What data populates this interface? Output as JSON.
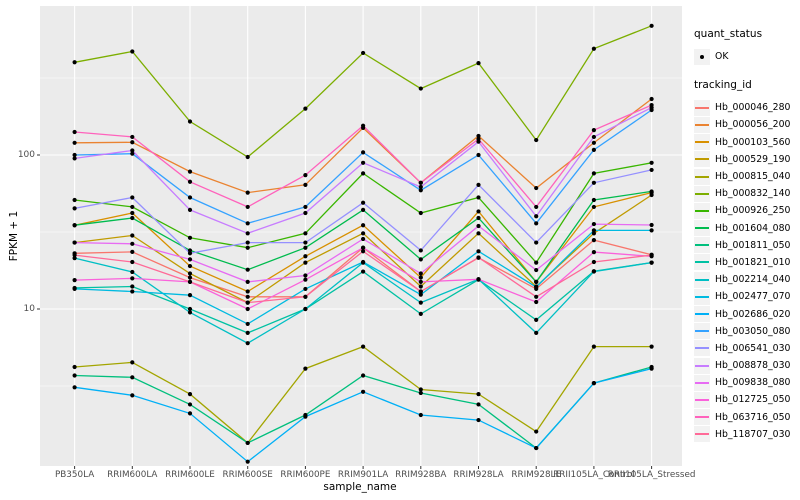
{
  "chart_data": {
    "type": "line",
    "xlabel": "sample_name",
    "ylabel": "FPKM + 1",
    "y_scale": "log10",
    "ylim": [
      0.95,
      930
    ],
    "y_major_ticks": [
      10,
      100
    ],
    "y_minor_ticks": [
      3.162,
      31.62,
      316.2
    ],
    "grid": "on",
    "legend_position": "right",
    "x_categories": [
      "PB350LA",
      "RRIM600LA",
      "RRIM600LE",
      "RRIM600SE",
      "RRIM600PE",
      "RRIM901LA",
      "RRIM928BA",
      "RRIM928LA",
      "RRIM928LE",
      "RRII105LA_Control",
      "RRII105LA_Stressed"
    ],
    "series": [
      {
        "name": "Hb_000046_280",
        "color": "#F8766D",
        "values": [
          23,
          23.5,
          16,
          12,
          12,
          25,
          13,
          21.5,
          13.5,
          28,
          22.5
        ]
      },
      {
        "name": "Hb_000056_200",
        "color": "#EA8331",
        "values": [
          120,
          121,
          78,
          57,
          64,
          150,
          66,
          133,
          61,
          120,
          231
        ]
      },
      {
        "name": "Hb_000103_560",
        "color": "#D89000",
        "values": [
          35,
          42,
          19,
          13,
          22,
          35,
          16,
          43,
          15,
          46,
          57
        ]
      },
      {
        "name": "Hb_000529_190",
        "color": "#C09B00",
        "values": [
          27,
          30,
          17,
          11,
          20,
          31,
          14,
          31,
          14,
          31,
          55
        ]
      },
      {
        "name": "Hb_000815_040",
        "color": "#A3A500",
        "values": [
          4.2,
          4.5,
          2.8,
          1.35,
          4.1,
          5.7,
          3.0,
          2.8,
          1.6,
          5.7,
          5.7
        ]
      },
      {
        "name": "Hb_000832_140",
        "color": "#7CAE00",
        "values": [
          400,
          470,
          165,
          97,
          200,
          460,
          270,
          395,
          125,
          490,
          690
        ]
      },
      {
        "name": "Hb_000926_250",
        "color": "#39B600",
        "values": [
          51,
          46,
          29,
          25,
          31,
          76,
          42,
          53,
          20,
          76,
          89
        ]
      },
      {
        "name": "Hb_001604_080",
        "color": "#00BB4E",
        "values": [
          35,
          39,
          24,
          18,
          25,
          44,
          21,
          39,
          15,
          51,
          58
        ]
      },
      {
        "name": "Hb_001811_050",
        "color": "#00BF7D",
        "values": [
          3.7,
          3.6,
          2.4,
          1.35,
          2.05,
          3.7,
          2.85,
          2.4,
          1.25,
          3.3,
          4.2
        ]
      },
      {
        "name": "Hb_001821_010",
        "color": "#00C1A3",
        "values": [
          13.7,
          14,
          10,
          7,
          10,
          17.5,
          9.3,
          15.5,
          8.5,
          17.6,
          20
        ]
      },
      {
        "name": "Hb_002214_040",
        "color": "#00BFC4",
        "values": [
          21.4,
          17.4,
          9.5,
          6,
          10,
          20,
          11,
          15.6,
          7,
          17.5,
          20
        ]
      },
      {
        "name": "Hb_002477_070",
        "color": "#00BAE0",
        "values": [
          13.5,
          13,
          12.3,
          8,
          13.5,
          20.2,
          12.4,
          23.7,
          13.9,
          32.4,
          32.4
        ]
      },
      {
        "name": "Hb_002686_020",
        "color": "#00B0F6",
        "values": [
          3.1,
          2.75,
          2.1,
          1.02,
          2.0,
          2.9,
          2.05,
          1.9,
          1.25,
          3.3,
          4.1
        ]
      },
      {
        "name": "Hb_003050_080",
        "color": "#35A2FF",
        "values": [
          100,
          102,
          53,
          36,
          46,
          104,
          59,
          100,
          36,
          108,
          196
        ]
      },
      {
        "name": "Hb_006541_030",
        "color": "#9590FF",
        "values": [
          45,
          53,
          23,
          27,
          27,
          49,
          24,
          64,
          27,
          66,
          80
        ]
      },
      {
        "name": "Hb_008878_030",
        "color": "#C77CFF",
        "values": [
          95,
          107,
          44,
          31,
          42,
          89,
          62,
          122,
          40,
          131,
          203
        ]
      },
      {
        "name": "Hb_009838_080",
        "color": "#E76BF3",
        "values": [
          27,
          26.5,
          21,
          15,
          16.5,
          28.5,
          17,
          34.6,
          17.9,
          35.6,
          35.1
        ]
      },
      {
        "name": "Hb_012725_050",
        "color": "#FA62DB",
        "values": [
          15.4,
          15.8,
          15,
          10,
          15.5,
          25,
          15,
          15.6,
          11.1,
          23.4,
          22
        ]
      },
      {
        "name": "Hb_063716_050",
        "color": "#FF62BC",
        "values": [
          141,
          131,
          67,
          46,
          74,
          155,
          66,
          127,
          46,
          145,
          211
        ]
      },
      {
        "name": "Hb_118707_030",
        "color": "#FF6A98",
        "values": [
          22.4,
          20.2,
          15,
          11,
          12,
          23.7,
          13,
          21.6,
          12,
          20.2,
          22.4
        ]
      }
    ]
  },
  "axes": {
    "y_title": "FPKM + 1",
    "x_title": "sample_name",
    "y_tick_labels": [
      "100",
      "10"
    ]
  },
  "legend": {
    "quant_status_title": "quant_status",
    "quant_status_items": [
      {
        "label": "OK",
        "marker": "point-icon"
      }
    ],
    "tracking_title": "tracking_id"
  },
  "style_colors": {
    "panel_bg": "#EBEBEB",
    "grid": "#FFFFFF",
    "point": "#000000",
    "axis_text": "#4D4D4D"
  }
}
